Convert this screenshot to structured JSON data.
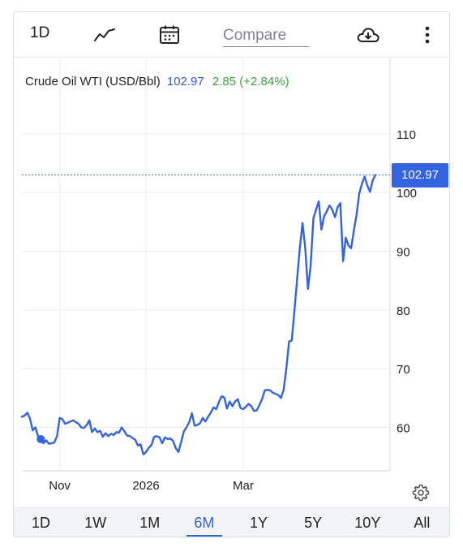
{
  "toolbar": {
    "interval_label": "1D",
    "compare_placeholder": "Compare",
    "icons": [
      "line-chart-icon",
      "calendar-icon",
      "cloud-download-icon",
      "more-vert-icon"
    ]
  },
  "legend": {
    "name": "Crude Oil WTI (USD/Bbl)",
    "last": "102.97",
    "change": "2.85 (+2.84%)"
  },
  "price_tag": "102.97",
  "range_tabs": [
    {
      "label": "1D",
      "active": false
    },
    {
      "label": "1W",
      "active": false
    },
    {
      "label": "1M",
      "active": false
    },
    {
      "label": "6M",
      "active": true
    },
    {
      "label": "1Y",
      "active": false
    },
    {
      "label": "5Y",
      "active": false
    },
    {
      "label": "10Y",
      "active": false
    },
    {
      "label": "All",
      "active": false
    }
  ],
  "colors": {
    "line": "#3463e0",
    "change_positive": "#3aa33d",
    "accent": "#3463e0"
  },
  "chart_data": {
    "type": "line",
    "series": [
      {
        "values": [
          61.8,
          62.0,
          62.5,
          61.5,
          59.5,
          60.0,
          58.5,
          58.0,
          57.3,
          57.8,
          57.2,
          57.3,
          57.4,
          58.5,
          61.6,
          61.4,
          60.6,
          60.8,
          61.0,
          61.2,
          60.9,
          60.6,
          60.0,
          59.9,
          60.4,
          61.2,
          59.2,
          59.8,
          59.2,
          59.4,
          58.4,
          59.0,
          58.5,
          58.9,
          58.7,
          59.2,
          59.1,
          60.0,
          59.3,
          58.6,
          58.5,
          58.2,
          57.9,
          56.9,
          57.1,
          55.4,
          55.8,
          56.5,
          57.0,
          58.4,
          58.5,
          58.3,
          57.3,
          58.3,
          58.0,
          58.1,
          57.7,
          56.5,
          55.8,
          57.5,
          59.3,
          60.0,
          60.9,
          62.4,
          60.3,
          60.4,
          60.7,
          61.6,
          61.0,
          61.8,
          62.5,
          63.4,
          63.1,
          64.3,
          65.3,
          65.1,
          63.2,
          64.4,
          63.6,
          64.4,
          64.8,
          63.3,
          63.1,
          63.5,
          64.0,
          63.6,
          62.8,
          62.9,
          63.8,
          64.8,
          66.3,
          66.4,
          66.3,
          65.9,
          65.7,
          65.5,
          65.0,
          66.4,
          70.1,
          74.6,
          74.8,
          80.0,
          85.4,
          90.6,
          94.8,
          90.4,
          83.6,
          87.5,
          95.6,
          97.1,
          98.5,
          93.7,
          96.0,
          96.8,
          97.8,
          97.1,
          95.8,
          97.5,
          98.2,
          88.3,
          92.3,
          91.0,
          90.5,
          93.5,
          96.2,
          99.8,
          101.5,
          102.7,
          101.2,
          100.1,
          102.1,
          102.97
        ],
        "last": 102.97
      }
    ],
    "x_tick_labels": [
      "Nov",
      "2026",
      "Mar"
    ],
    "y_ticks": [
      60,
      70,
      80,
      90,
      100,
      110
    ],
    "ylim": [
      52.6,
      117.3
    ],
    "ylabel_position": "right",
    "grid": true,
    "last_value_line": 102.97,
    "highlight_marker_value": 58.0
  }
}
